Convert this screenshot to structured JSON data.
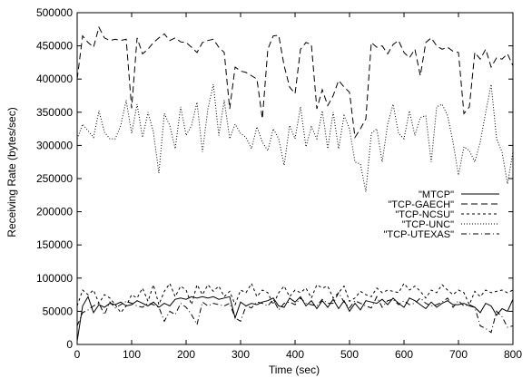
{
  "chart_data": {
    "type": "line",
    "xlabel": "Time (sec)",
    "ylabel": "Receiving Rate (bytes/sec)",
    "xlim": [
      0,
      800
    ],
    "ylim": [
      0,
      500000
    ],
    "x_ticks": [
      0,
      100,
      200,
      300,
      400,
      500,
      600,
      700,
      800
    ],
    "y_ticks": [
      0,
      50000,
      100000,
      150000,
      200000,
      250000,
      300000,
      350000,
      400000,
      450000,
      500000
    ],
    "grid": false,
    "legend_position": "right",
    "x": [
      0,
      10,
      20,
      30,
      40,
      50,
      60,
      70,
      80,
      90,
      100,
      110,
      120,
      130,
      140,
      150,
      160,
      170,
      180,
      190,
      200,
      210,
      220,
      230,
      240,
      250,
      260,
      270,
      280,
      290,
      300,
      310,
      320,
      330,
      340,
      350,
      360,
      370,
      380,
      390,
      400,
      410,
      420,
      430,
      440,
      450,
      460,
      470,
      480,
      490,
      500,
      510,
      520,
      530,
      540,
      550,
      560,
      570,
      580,
      590,
      600,
      610,
      620,
      630,
      640,
      650,
      660,
      670,
      680,
      690,
      700,
      710,
      720,
      730,
      740,
      750,
      760,
      770,
      780,
      790,
      800
    ],
    "series": [
      {
        "name": "\"MTCP\"",
        "dash": "solid",
        "values": [
          5000,
          58000,
          72000,
          48000,
          60000,
          56000,
          62000,
          60000,
          64000,
          58000,
          60000,
          66000,
          62000,
          58000,
          64000,
          56000,
          62000,
          58000,
          68000,
          70000,
          68000,
          72000,
          70000,
          72000,
          70000,
          72000,
          68000,
          70000,
          72000,
          40000,
          64000,
          58000,
          62000,
          60000,
          64000,
          66000,
          70000,
          58000,
          56000,
          70000,
          64000,
          72000,
          58000,
          66000,
          54000,
          66000,
          56000,
          68000,
          54000,
          66000,
          50000,
          62000,
          52000,
          66000,
          64000,
          62000,
          68000,
          60000,
          70000,
          62000,
          56000,
          70000,
          66000,
          60000,
          54000,
          64000,
          56000,
          62000,
          66000,
          60000,
          60000,
          62000,
          58000,
          56000,
          48000,
          62000,
          58000,
          44000,
          54000,
          50000,
          68000
        ]
      },
      {
        "name": "\"TCP-GAECH\"",
        "dash": "long-dash",
        "values": [
          400000,
          465000,
          455000,
          448000,
          478000,
          462000,
          458000,
          460000,
          458000,
          460000,
          356000,
          462000,
          438000,
          445000,
          455000,
          462000,
          468000,
          458000,
          462000,
          456000,
          455000,
          448000,
          440000,
          455000,
          458000,
          460000,
          448000,
          440000,
          355000,
          418000,
          412000,
          410000,
          405000,
          400000,
          340000,
          445000,
          465000,
          466000,
          420000,
          388000,
          378000,
          445000,
          455000,
          452000,
          355000,
          384000,
          360000,
          375000,
          398000,
          388000,
          380000,
          312000,
          325000,
          340000,
          455000,
          448000,
          450000,
          438000,
          452000,
          458000,
          440000,
          432000,
          445000,
          405000,
          455000,
          462000,
          450000,
          445000,
          448000,
          442000,
          440000,
          348000,
          358000,
          440000,
          430000,
          445000,
          418000,
          432000,
          430000,
          438000,
          420000
        ]
      },
      {
        "name": "\"TCP-NCSU\"",
        "dash": "short-dash",
        "values": [
          58000,
          82000,
          75000,
          82000,
          62000,
          75000,
          70000,
          60000,
          48000,
          58000,
          75000,
          70000,
          85000,
          65000,
          90000,
          60000,
          80000,
          92000,
          72000,
          88000,
          82000,
          60000,
          90000,
          75000,
          90000,
          80000,
          88000,
          72000,
          80000,
          60000,
          82000,
          78000,
          92000,
          72000,
          82000,
          78000,
          60000,
          78000,
          88000,
          72000,
          82000,
          78000,
          85000,
          70000,
          90000,
          85000,
          88000,
          70000,
          78000,
          88000,
          65000,
          70000,
          80000,
          75000,
          72000,
          85000,
          78000,
          82000,
          80000,
          78000,
          92000,
          82000,
          88000,
          80000,
          70000,
          82000,
          78000,
          90000,
          82000,
          75000,
          82000,
          78000,
          60000,
          80000,
          72000,
          82000,
          78000,
          80000,
          82000,
          78000,
          82000
        ]
      },
      {
        "name": "\"TCP-UNC\"",
        "dash": "dotted",
        "values": [
          310000,
          332000,
          322000,
          312000,
          352000,
          320000,
          310000,
          310000,
          330000,
          368000,
          318000,
          362000,
          312000,
          350000,
          320000,
          258000,
          348000,
          330000,
          295000,
          358000,
          315000,
          330000,
          365000,
          290000,
          355000,
          392000,
          315000,
          368000,
          310000,
          332000,
          318000,
          312000,
          295000,
          328000,
          305000,
          292000,
          325000,
          310000,
          270000,
          330000,
          310000,
          358000,
          298000,
          328000,
          310000,
          352000,
          295000,
          350000,
          295000,
          345000,
          325000,
          275000,
          272000,
          230000,
          318000,
          325000,
          275000,
          332000,
          362000,
          318000,
          310000,
          352000,
          315000,
          342000,
          345000,
          275000,
          358000,
          362000,
          345000,
          305000,
          255000,
          298000,
          292000,
          275000,
          305000,
          350000,
          392000,
          310000,
          290000,
          242000,
          290000
        ]
      },
      {
        "name": "\"TCP-UTEXAS\"",
        "dash": "dash-dot",
        "values": [
          28000,
          48000,
          52000,
          58000,
          62000,
          45000,
          64000,
          55000,
          60000,
          65000,
          62000,
          58000,
          56000,
          62000,
          60000,
          56000,
          35000,
          50000,
          45000,
          62000,
          56000,
          45000,
          30000,
          64000,
          58000,
          62000,
          60000,
          58000,
          62000,
          40000,
          35000,
          58000,
          55000,
          64000,
          62000,
          58000,
          68000,
          52000,
          62000,
          64000,
          60000,
          70000,
          62000,
          60000,
          58000,
          68000,
          62000,
          62000,
          78000,
          64000,
          55000,
          66000,
          62000,
          58000,
          55000,
          72000,
          56000,
          66000,
          68000,
          60000,
          66000,
          60000,
          62000,
          70000,
          62000,
          58000,
          60000,
          64000,
          70000,
          56000,
          66000,
          58000,
          60000,
          56000,
          28000,
          24000,
          18000,
          50000,
          42000,
          26000,
          28000
        ]
      }
    ]
  }
}
